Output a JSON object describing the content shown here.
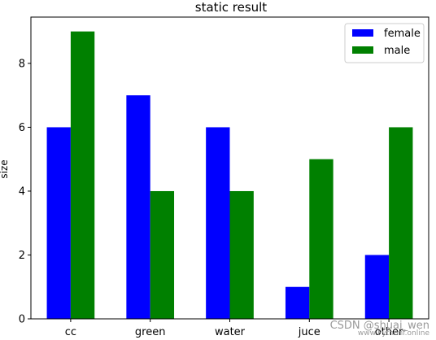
{
  "chart_data": {
    "type": "bar",
    "title": "static result",
    "xlabel": "",
    "ylabel": "size",
    "categories": [
      "cc",
      "green",
      "water",
      "juce",
      "other"
    ],
    "series": [
      {
        "name": "female",
        "values": [
          6,
          7,
          6,
          1,
          2
        ],
        "color": "#0000ff"
      },
      {
        "name": "male",
        "values": [
          9,
          4,
          4,
          5,
          6
        ],
        "color": "#008000"
      }
    ],
    "ylim": [
      0,
      9.45
    ],
    "yticks": [
      0,
      2,
      4,
      6,
      8
    ],
    "grid": false,
    "legend_position": "top-right"
  },
  "watermark": {
    "line1": "CSDN @shuai_wen",
    "line2": "www.Pythonf.online"
  }
}
